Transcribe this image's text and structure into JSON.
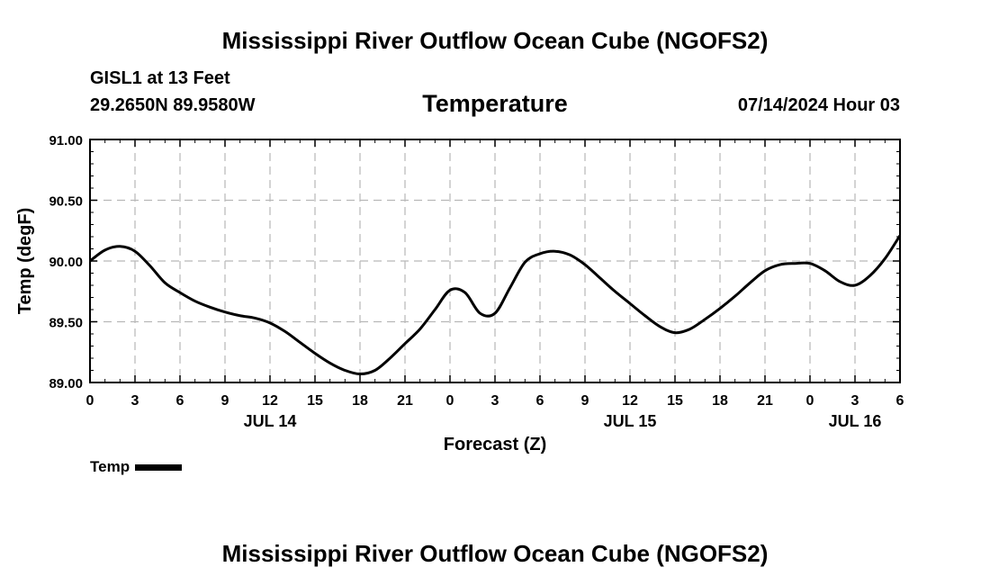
{
  "header": {
    "title": "Mississippi River Outflow Ocean Cube (NGOFS2)",
    "station": "GISL1 at 13 Feet",
    "coords": "29.2650N  89.9580W",
    "variable": "Temperature",
    "datetime": "07/14/2024 Hour 03"
  },
  "footer": {
    "title": "Mississippi River Outflow Ocean Cube (NGOFS2)"
  },
  "legend": {
    "label": "Temp",
    "color": "#000000"
  },
  "chart_data": {
    "type": "line",
    "title": "Temperature",
    "xlabel": "Forecast (Z)",
    "ylabel": "Temp (degF)",
    "xlim": [
      0,
      54
    ],
    "ylim": [
      89.0,
      91.0
    ],
    "grid": true,
    "x_ticks": [
      {
        "x": 0,
        "label": "0"
      },
      {
        "x": 3,
        "label": "3"
      },
      {
        "x": 6,
        "label": "6"
      },
      {
        "x": 9,
        "label": "9"
      },
      {
        "x": 12,
        "label": "12"
      },
      {
        "x": 15,
        "label": "15"
      },
      {
        "x": 18,
        "label": "18"
      },
      {
        "x": 21,
        "label": "21"
      },
      {
        "x": 24,
        "label": "0"
      },
      {
        "x": 27,
        "label": "3"
      },
      {
        "x": 30,
        "label": "6"
      },
      {
        "x": 33,
        "label": "9"
      },
      {
        "x": 36,
        "label": "12"
      },
      {
        "x": 39,
        "label": "15"
      },
      {
        "x": 42,
        "label": "18"
      },
      {
        "x": 45,
        "label": "21"
      },
      {
        "x": 48,
        "label": "0"
      },
      {
        "x": 51,
        "label": "3"
      },
      {
        "x": 54,
        "label": "6"
      }
    ],
    "day_labels": [
      {
        "x": 12,
        "label": "JUL 14"
      },
      {
        "x": 36,
        "label": "JUL 15"
      },
      {
        "x": 51,
        "label": "JUL 16"
      }
    ],
    "y_ticks": [
      {
        "y": 89.0,
        "label": "89.00"
      },
      {
        "y": 89.5,
        "label": "89.50"
      },
      {
        "y": 90.0,
        "label": "90.00"
      },
      {
        "y": 90.5,
        "label": "90.50"
      },
      {
        "y": 91.0,
        "label": "91.00"
      }
    ],
    "series": [
      {
        "name": "Temp",
        "color": "#000000",
        "x": [
          0,
          1,
          2,
          3,
          4,
          5,
          6,
          7,
          8,
          9,
          10,
          11,
          12,
          13,
          14,
          15,
          16,
          17,
          18,
          19,
          20,
          21,
          22,
          23,
          24,
          25,
          26,
          27,
          28,
          29,
          30,
          31,
          32,
          33,
          34,
          35,
          36,
          37,
          38,
          39,
          40,
          41,
          42,
          43,
          44,
          45,
          46,
          47,
          48,
          49,
          50,
          51,
          52,
          53,
          54
        ],
        "y": [
          90.0,
          90.09,
          90.12,
          90.08,
          89.96,
          89.82,
          89.74,
          89.67,
          89.62,
          89.58,
          89.55,
          89.53,
          89.49,
          89.42,
          89.33,
          89.24,
          89.16,
          89.1,
          89.07,
          89.1,
          89.2,
          89.32,
          89.44,
          89.6,
          89.76,
          89.74,
          89.57,
          89.57,
          89.78,
          89.99,
          90.06,
          90.08,
          90.05,
          89.97,
          89.86,
          89.75,
          89.65,
          89.55,
          89.46,
          89.41,
          89.44,
          89.52,
          89.61,
          89.71,
          89.82,
          89.92,
          89.97,
          89.98,
          89.98,
          89.92,
          89.83,
          89.8,
          89.88,
          90.02,
          90.21
        ]
      }
    ]
  }
}
